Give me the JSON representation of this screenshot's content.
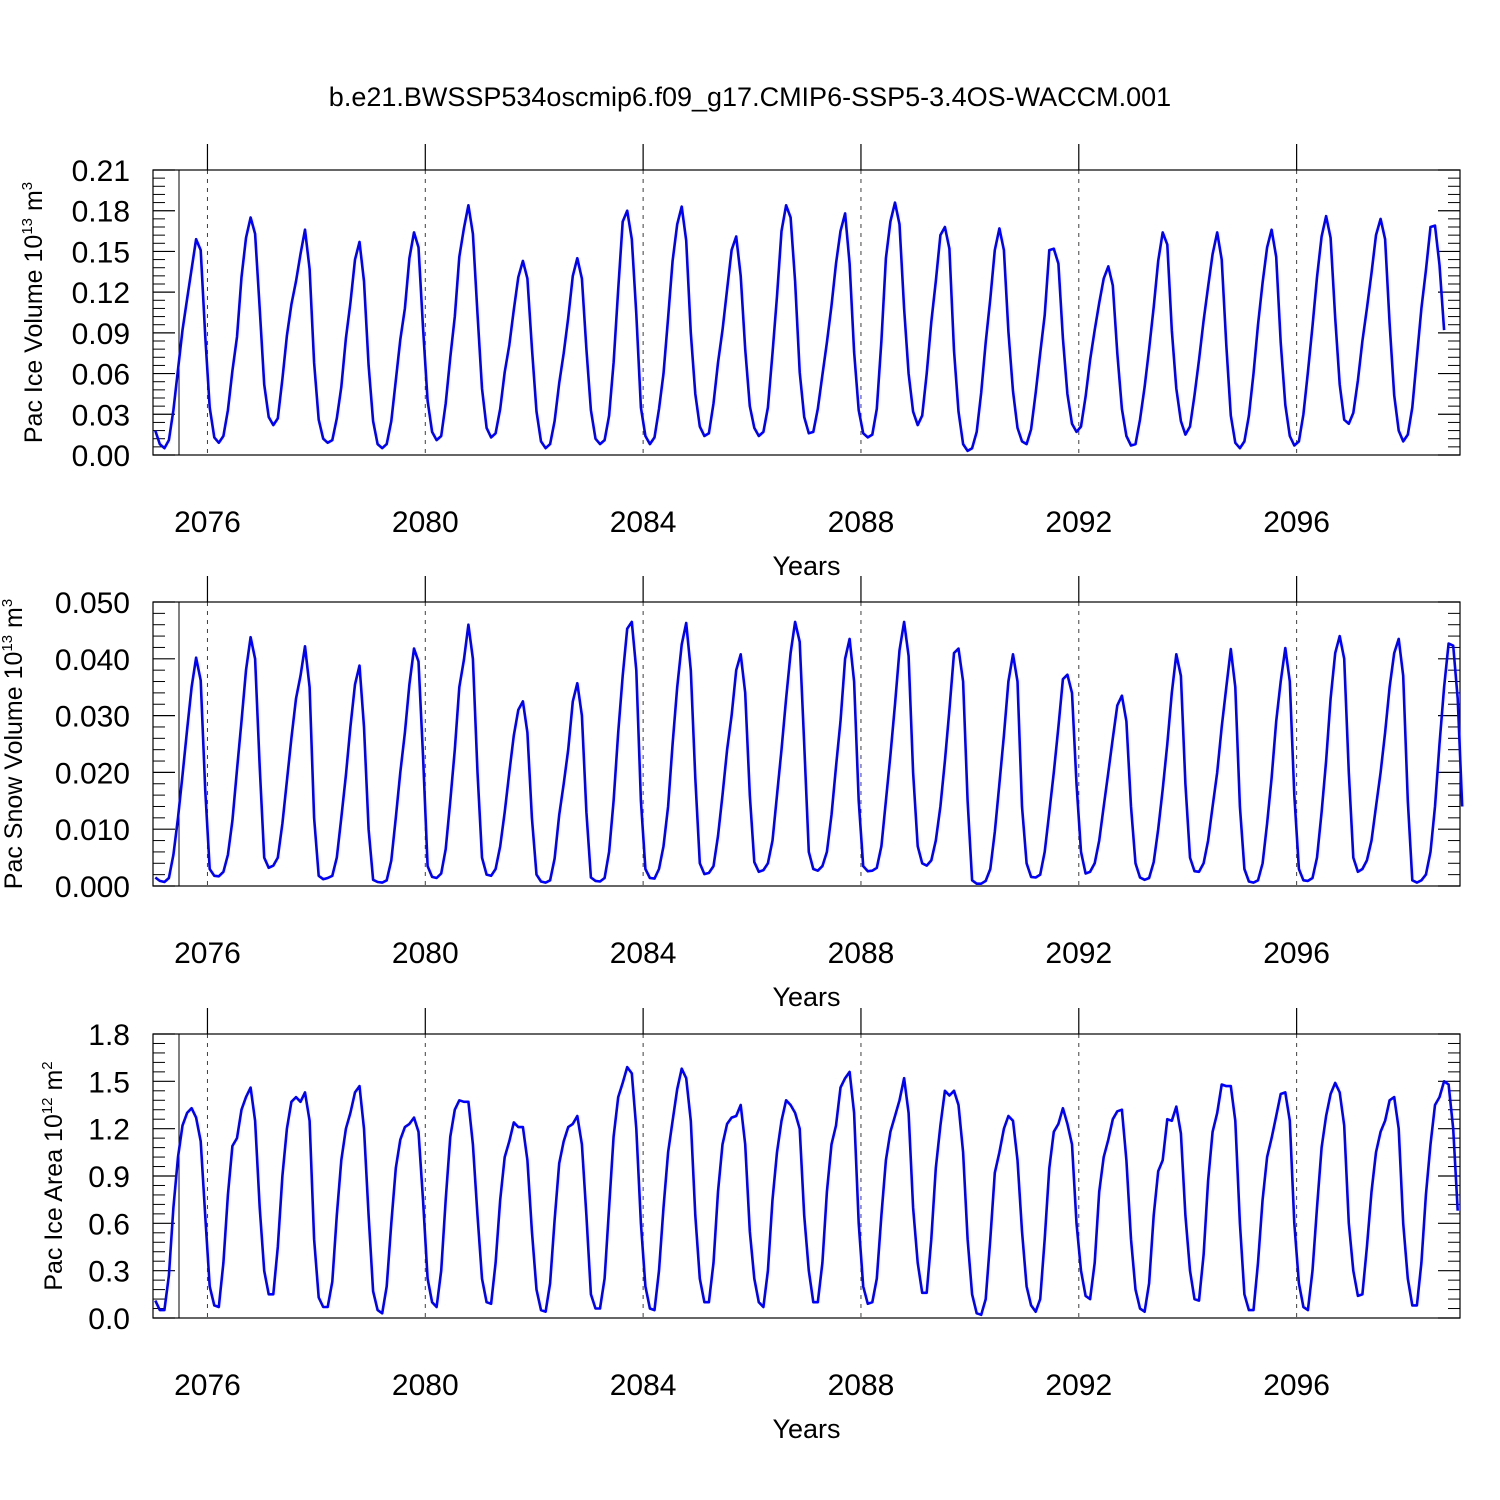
{
  "title": "b.e21.BWSSP534oscmip6.f09_g17.CMIP6-SSP5-3.4OS-WACCM.001",
  "colors": {
    "line": "#0000ff",
    "axis": "#000000",
    "refline": "#000000"
  },
  "chart_data": [
    {
      "type": "line",
      "ylabel": {
        "text": "Pac Ice Volume 10",
        "sup": "13",
        "unit": " m",
        "unit_sup": "3"
      },
      "xlabel": "Years",
      "xlim": [
        2075.0,
        2099.0
      ],
      "xticks": [
        2076,
        2080,
        2084,
        2088,
        2092,
        2096
      ],
      "xtick_labels": [
        "2076",
        "2080",
        "2084",
        "2088",
        "2092",
        "2096"
      ],
      "ylim": [
        0.0,
        0.21
      ],
      "yticks": [
        0.0,
        0.03,
        0.06,
        0.09,
        0.12,
        0.15,
        0.18,
        0.21
      ],
      "ytick_labels": [
        "0.00",
        "0.03",
        "0.06",
        "0.09",
        "0.12",
        "0.15",
        "0.18",
        "0.21"
      ],
      "reference_lines_x": [
        2076,
        2080,
        2084,
        2088,
        2092,
        2096
      ],
      "series": [
        {
          "x_start": 2075.042,
          "x_step": 0.08333,
          "values": [
            0.018,
            0.008,
            0.005,
            0.011,
            0.033,
            0.063,
            0.092,
            0.115,
            0.137,
            0.159,
            0.151,
            0.088,
            0.035,
            0.013,
            0.009,
            0.014,
            0.033,
            0.062,
            0.087,
            0.131,
            0.16,
            0.175,
            0.163,
            0.108,
            0.052,
            0.028,
            0.022,
            0.027,
            0.056,
            0.088,
            0.111,
            0.128,
            0.148,
            0.166,
            0.137,
            0.068,
            0.026,
            0.012,
            0.009,
            0.011,
            0.027,
            0.05,
            0.086,
            0.112,
            0.144,
            0.157,
            0.128,
            0.066,
            0.025,
            0.008,
            0.005,
            0.008,
            0.025,
            0.055,
            0.085,
            0.108,
            0.145,
            0.164,
            0.153,
            0.094,
            0.04,
            0.017,
            0.011,
            0.014,
            0.038,
            0.072,
            0.102,
            0.146,
            0.167,
            0.184,
            0.163,
            0.104,
            0.049,
            0.02,
            0.013,
            0.016,
            0.034,
            0.061,
            0.081,
            0.107,
            0.131,
            0.143,
            0.13,
            0.079,
            0.032,
            0.01,
            0.005,
            0.008,
            0.025,
            0.053,
            0.075,
            0.101,
            0.132,
            0.145,
            0.13,
            0.078,
            0.033,
            0.012,
            0.008,
            0.011,
            0.029,
            0.068,
            0.122,
            0.172,
            0.18,
            0.159,
            0.104,
            0.035,
            0.014,
            0.008,
            0.013,
            0.034,
            0.06,
            0.101,
            0.143,
            0.17,
            0.183,
            0.158,
            0.09,
            0.045,
            0.021,
            0.014,
            0.016,
            0.038,
            0.068,
            0.092,
            0.122,
            0.151,
            0.161,
            0.132,
            0.078,
            0.036,
            0.02,
            0.014,
            0.017,
            0.035,
            0.075,
            0.117,
            0.165,
            0.184,
            0.175,
            0.128,
            0.061,
            0.028,
            0.016,
            0.017,
            0.034,
            0.059,
            0.083,
            0.11,
            0.141,
            0.165,
            0.178,
            0.141,
            0.076,
            0.033,
            0.016,
            0.013,
            0.015,
            0.034,
            0.084,
            0.145,
            0.172,
            0.186,
            0.17,
            0.108,
            0.06,
            0.032,
            0.022,
            0.029,
            0.06,
            0.098,
            0.128,
            0.162,
            0.168,
            0.152,
            0.077,
            0.032,
            0.008,
            0.003,
            0.005,
            0.017,
            0.046,
            0.083,
            0.115,
            0.151,
            0.167,
            0.151,
            0.091,
            0.047,
            0.02,
            0.01,
            0.008,
            0.019,
            0.046,
            0.075,
            0.103,
            0.151,
            0.152,
            0.141,
            0.086,
            0.045,
            0.023,
            0.017,
            0.021,
            0.043,
            0.07,
            0.092,
            0.112,
            0.13,
            0.139,
            0.125,
            0.075,
            0.034,
            0.014,
            0.007,
            0.008,
            0.026,
            0.05,
            0.078,
            0.109,
            0.143,
            0.164,
            0.155,
            0.092,
            0.049,
            0.025,
            0.015,
            0.021,
            0.044,
            0.07,
            0.099,
            0.124,
            0.148,
            0.164,
            0.144,
            0.081,
            0.029,
            0.009,
            0.005,
            0.01,
            0.029,
            0.06,
            0.096,
            0.127,
            0.153,
            0.166,
            0.146,
            0.083,
            0.037,
            0.014,
            0.007,
            0.01,
            0.03,
            0.061,
            0.095,
            0.131,
            0.161,
            0.176,
            0.16,
            0.101,
            0.052,
            0.026,
            0.023,
            0.031,
            0.055,
            0.084,
            0.108,
            0.134,
            0.162,
            0.174,
            0.159,
            0.097,
            0.044,
            0.018,
            0.01,
            0.015,
            0.035,
            0.072,
            0.108,
            0.136,
            0.168,
            0.169,
            0.14,
            0.092
          ]
        }
      ]
    },
    {
      "type": "line",
      "ylabel": {
        "text": "Pac Snow Volume 10",
        "sup": "13",
        "unit": " m",
        "unit_sup": "3"
      },
      "xlabel": "Years",
      "xlim": [
        2075.0,
        2099.0
      ],
      "xticks": [
        2076,
        2080,
        2084,
        2088,
        2092,
        2096
      ],
      "xtick_labels": [
        "2076",
        "2080",
        "2084",
        "2088",
        "2092",
        "2096"
      ],
      "ylim": [
        0.0,
        0.05
      ],
      "yticks": [
        0.0,
        0.01,
        0.02,
        0.03,
        0.04,
        0.05
      ],
      "ytick_labels": [
        "0.000",
        "0.010",
        "0.020",
        "0.030",
        "0.040",
        "0.050"
      ],
      "reference_lines_x": [
        2076,
        2080,
        2084,
        2088,
        2092,
        2096
      ],
      "series": [
        {
          "x_start": 2075.042,
          "x_step": 0.08333,
          "values": [
            0.0015,
            0.0009,
            0.0007,
            0.0014,
            0.0055,
            0.012,
            0.0195,
            0.0275,
            0.035,
            0.0402,
            0.0362,
            0.017,
            0.003,
            0.0018,
            0.0017,
            0.0025,
            0.0055,
            0.0115,
            0.0205,
            0.029,
            0.038,
            0.0438,
            0.04,
            0.021,
            0.005,
            0.0032,
            0.0036,
            0.005,
            0.011,
            0.0185,
            0.026,
            0.033,
            0.037,
            0.0422,
            0.035,
            0.012,
            0.0018,
            0.0012,
            0.0014,
            0.0018,
            0.005,
            0.012,
            0.0195,
            0.028,
            0.0355,
            0.0388,
            0.028,
            0.01,
            0.0011,
            0.0007,
            0.0006,
            0.001,
            0.0045,
            0.012,
            0.02,
            0.027,
            0.0355,
            0.0418,
            0.0395,
            0.023,
            0.0035,
            0.0016,
            0.0014,
            0.0022,
            0.0065,
            0.015,
            0.024,
            0.035,
            0.0398,
            0.046,
            0.04,
            0.02,
            0.005,
            0.002,
            0.0018,
            0.003,
            0.007,
            0.013,
            0.02,
            0.0265,
            0.031,
            0.0325,
            0.027,
            0.012,
            0.002,
            0.0008,
            0.0006,
            0.001,
            0.0048,
            0.0125,
            0.018,
            0.024,
            0.0325,
            0.0357,
            0.03,
            0.013,
            0.0015,
            0.0009,
            0.0008,
            0.0014,
            0.006,
            0.015,
            0.027,
            0.037,
            0.0453,
            0.0465,
            0.038,
            0.015,
            0.003,
            0.0014,
            0.0013,
            0.003,
            0.007,
            0.014,
            0.025,
            0.035,
            0.0425,
            0.0463,
            0.038,
            0.019,
            0.004,
            0.0021,
            0.0023,
            0.0035,
            0.0088,
            0.016,
            0.024,
            0.03,
            0.038,
            0.0408,
            0.034,
            0.016,
            0.0042,
            0.0025,
            0.0028,
            0.004,
            0.008,
            0.016,
            0.024,
            0.033,
            0.041,
            0.0465,
            0.043,
            0.025,
            0.006,
            0.003,
            0.0027,
            0.0035,
            0.006,
            0.0125,
            0.021,
            0.029,
            0.04,
            0.0435,
            0.036,
            0.015,
            0.0035,
            0.0026,
            0.0027,
            0.0032,
            0.007,
            0.015,
            0.023,
            0.032,
            0.0415,
            0.0465,
            0.0405,
            0.02,
            0.007,
            0.004,
            0.0036,
            0.0045,
            0.008,
            0.014,
            0.022,
            0.031,
            0.041,
            0.0418,
            0.036,
            0.015,
            0.001,
            0.0004,
            0.0004,
            0.0009,
            0.003,
            0.0095,
            0.018,
            0.0265,
            0.036,
            0.0408,
            0.036,
            0.014,
            0.004,
            0.0016,
            0.0015,
            0.002,
            0.006,
            0.013,
            0.02,
            0.028,
            0.0364,
            0.0372,
            0.034,
            0.018,
            0.006,
            0.0022,
            0.0025,
            0.004,
            0.008,
            0.014,
            0.02,
            0.026,
            0.0318,
            0.0335,
            0.029,
            0.014,
            0.004,
            0.0015,
            0.0011,
            0.0014,
            0.0042,
            0.01,
            0.017,
            0.025,
            0.034,
            0.0408,
            0.037,
            0.018,
            0.005,
            0.0026,
            0.0025,
            0.004,
            0.008,
            0.014,
            0.02,
            0.028,
            0.035,
            0.0417,
            0.035,
            0.014,
            0.003,
            0.0008,
            0.0006,
            0.001,
            0.004,
            0.011,
            0.019,
            0.029,
            0.036,
            0.0419,
            0.036,
            0.016,
            0.003,
            0.001,
            0.0009,
            0.0014,
            0.005,
            0.013,
            0.022,
            0.033,
            0.041,
            0.044,
            0.04,
            0.02,
            0.005,
            0.0025,
            0.003,
            0.0045,
            0.008,
            0.014,
            0.02,
            0.027,
            0.035,
            0.041,
            0.0435,
            0.037,
            0.015,
            0.001,
            0.0006,
            0.001,
            0.002,
            0.006,
            0.014,
            0.025,
            0.035,
            0.0427,
            0.0423,
            0.033,
            0.014
          ]
        }
      ]
    },
    {
      "type": "line",
      "ylabel": {
        "text": "Pac Ice Area 10",
        "sup": "12",
        "unit": " m",
        "unit_sup": "2"
      },
      "xlabel": "Years",
      "xlim": [
        2075.0,
        2099.0
      ],
      "xticks": [
        2076,
        2080,
        2084,
        2088,
        2092,
        2096
      ],
      "xtick_labels": [
        "2076",
        "2080",
        "2084",
        "2088",
        "2092",
        "2096"
      ],
      "ylim": [
        0.0,
        1.8
      ],
      "yticks": [
        0.0,
        0.3,
        0.6,
        0.9,
        1.2,
        1.5,
        1.8
      ],
      "ytick_labels": [
        "0.0",
        "0.3",
        "0.6",
        "0.9",
        "1.2",
        "1.5",
        "1.8"
      ],
      "reference_lines_x": [
        2076,
        2080,
        2084,
        2088,
        2092,
        2096
      ],
      "series": [
        {
          "x_start": 2075.042,
          "x_step": 0.08333,
          "values": [
            0.11,
            0.05,
            0.05,
            0.27,
            0.7,
            1.02,
            1.22,
            1.3,
            1.33,
            1.27,
            1.12,
            0.65,
            0.2,
            0.08,
            0.07,
            0.35,
            0.78,
            1.09,
            1.14,
            1.32,
            1.4,
            1.46,
            1.25,
            0.7,
            0.3,
            0.15,
            0.15,
            0.45,
            0.9,
            1.2,
            1.37,
            1.4,
            1.37,
            1.43,
            1.25,
            0.5,
            0.13,
            0.07,
            0.07,
            0.23,
            0.65,
            1.0,
            1.2,
            1.3,
            1.43,
            1.47,
            1.2,
            0.65,
            0.17,
            0.05,
            0.03,
            0.2,
            0.6,
            0.95,
            1.13,
            1.21,
            1.23,
            1.27,
            1.18,
            0.75,
            0.25,
            0.1,
            0.07,
            0.3,
            0.75,
            1.15,
            1.32,
            1.38,
            1.37,
            1.37,
            1.1,
            0.65,
            0.25,
            0.1,
            0.09,
            0.35,
            0.75,
            1.02,
            1.12,
            1.24,
            1.21,
            1.21,
            1.0,
            0.55,
            0.18,
            0.05,
            0.04,
            0.22,
            0.62,
            0.98,
            1.12,
            1.21,
            1.23,
            1.28,
            1.1,
            0.65,
            0.15,
            0.06,
            0.06,
            0.25,
            0.7,
            1.15,
            1.4,
            1.49,
            1.59,
            1.55,
            1.2,
            0.6,
            0.2,
            0.06,
            0.05,
            0.3,
            0.7,
            1.05,
            1.25,
            1.45,
            1.58,
            1.52,
            1.25,
            0.65,
            0.25,
            0.1,
            0.1,
            0.35,
            0.8,
            1.1,
            1.23,
            1.27,
            1.28,
            1.35,
            1.1,
            0.55,
            0.25,
            0.1,
            0.07,
            0.3,
            0.75,
            1.05,
            1.25,
            1.38,
            1.35,
            1.3,
            1.2,
            0.65,
            0.3,
            0.1,
            0.1,
            0.35,
            0.8,
            1.1,
            1.22,
            1.46,
            1.52,
            1.56,
            1.3,
            0.6,
            0.2,
            0.09,
            0.1,
            0.25,
            0.65,
            1.0,
            1.18,
            1.28,
            1.38,
            1.52,
            1.3,
            0.7,
            0.35,
            0.16,
            0.16,
            0.5,
            0.95,
            1.22,
            1.44,
            1.41,
            1.44,
            1.35,
            1.05,
            0.5,
            0.15,
            0.03,
            0.02,
            0.12,
            0.5,
            0.92,
            1.05,
            1.2,
            1.28,
            1.25,
            1.0,
            0.55,
            0.2,
            0.08,
            0.04,
            0.12,
            0.5,
            0.95,
            1.18,
            1.23,
            1.33,
            1.23,
            1.1,
            0.6,
            0.3,
            0.14,
            0.12,
            0.35,
            0.8,
            1.02,
            1.13,
            1.26,
            1.31,
            1.32,
            1.0,
            0.5,
            0.18,
            0.06,
            0.04,
            0.22,
            0.65,
            0.93,
            1.0,
            1.26,
            1.25,
            1.34,
            1.17,
            0.65,
            0.3,
            0.12,
            0.11,
            0.4,
            0.87,
            1.18,
            1.3,
            1.48,
            1.47,
            1.47,
            1.25,
            0.6,
            0.15,
            0.05,
            0.05,
            0.35,
            0.75,
            1.02,
            1.14,
            1.28,
            1.42,
            1.43,
            1.25,
            0.6,
            0.22,
            0.07,
            0.05,
            0.3,
            0.7,
            1.08,
            1.28,
            1.42,
            1.49,
            1.43,
            1.22,
            0.6,
            0.3,
            0.14,
            0.15,
            0.45,
            0.8,
            1.05,
            1.18,
            1.25,
            1.38,
            1.4,
            1.2,
            0.6,
            0.25,
            0.08,
            0.08,
            0.35,
            0.78,
            1.1,
            1.35,
            1.4,
            1.5,
            1.48,
            1.2,
            0.68
          ]
        }
      ]
    }
  ]
}
